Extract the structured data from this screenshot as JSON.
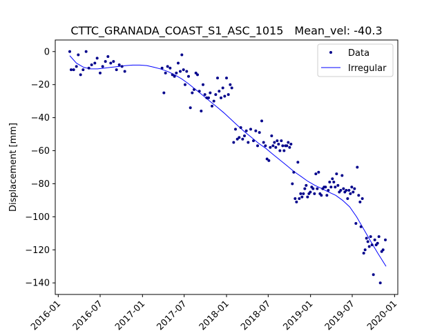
{
  "chart_data": {
    "type": "scatter",
    "title": "CTTC_GRANADA_COAST_S1_ASC_1015",
    "subtitle": "Mean_vel: -40.3",
    "xlabel": "",
    "ylabel": "Displacement [mm]",
    "x_type": "date",
    "xlim": [
      "2015-12-19",
      "2020-01-15"
    ],
    "ylim": [
      -147,
      7
    ],
    "x_ticks": [
      "2016-01",
      "2016-07",
      "2017-01",
      "2017-07",
      "2018-01",
      "2018-07",
      "2019-01",
      "2019-07",
      "2020-01"
    ],
    "y_ticks": [
      0,
      -20,
      -40,
      -60,
      -80,
      -100,
      -120,
      -140
    ],
    "grid": false,
    "legend_position": "top-right",
    "colors": {
      "points": "#00008b",
      "fit": "#0000ff"
    },
    "series": [
      {
        "name": "Data",
        "kind": "scatter",
        "points": [
          [
            "2016-02-20",
            0
          ],
          [
            "2016-02-26",
            -11
          ],
          [
            "2016-03-08",
            -11
          ],
          [
            "2016-03-20",
            -9
          ],
          [
            "2016-03-28",
            -2
          ],
          [
            "2016-04-07",
            -14
          ],
          [
            "2016-04-18",
            -11
          ],
          [
            "2016-05-01",
            0
          ],
          [
            "2016-05-13",
            -10
          ],
          [
            "2016-05-25",
            -8
          ],
          [
            "2016-06-08",
            -7
          ],
          [
            "2016-06-18",
            -4
          ],
          [
            "2016-07-01",
            -13
          ],
          [
            "2016-07-12",
            -9
          ],
          [
            "2016-07-24",
            -6
          ],
          [
            "2016-08-04",
            -3
          ],
          [
            "2016-08-16",
            -7
          ],
          [
            "2016-08-28",
            -6
          ],
          [
            "2016-09-10",
            -11
          ],
          [
            "2016-09-22",
            -8
          ],
          [
            "2016-10-04",
            -9
          ],
          [
            "2016-10-16",
            -12
          ],
          [
            "2017-03-27",
            -10
          ],
          [
            "2017-04-04",
            -25
          ],
          [
            "2017-04-11",
            -13
          ],
          [
            "2017-04-20",
            -9
          ],
          [
            "2017-05-01",
            -10
          ],
          [
            "2017-05-11",
            -14
          ],
          [
            "2017-05-20",
            -15
          ],
          [
            "2017-05-28",
            -13
          ],
          [
            "2017-06-05",
            -7
          ],
          [
            "2017-06-14",
            -12
          ],
          [
            "2017-06-21",
            -2
          ],
          [
            "2017-06-28",
            -11
          ],
          [
            "2017-07-05",
            -20
          ],
          [
            "2017-07-12",
            -12
          ],
          [
            "2017-07-20",
            -15
          ],
          [
            "2017-07-28",
            -34
          ],
          [
            "2017-08-05",
            -25
          ],
          [
            "2017-08-13",
            -23
          ],
          [
            "2017-08-21",
            -13
          ],
          [
            "2017-08-28",
            -14
          ],
          [
            "2017-09-05",
            -24
          ],
          [
            "2017-09-13",
            -36
          ],
          [
            "2017-09-21",
            -20
          ],
          [
            "2017-09-29",
            -26
          ],
          [
            "2017-10-07",
            -28
          ],
          [
            "2017-10-15",
            -28
          ],
          [
            "2017-10-22",
            -25
          ],
          [
            "2017-10-30",
            -33
          ],
          [
            "2017-11-07",
            -30
          ],
          [
            "2017-11-15",
            -26
          ],
          [
            "2017-11-23",
            -16
          ],
          [
            "2017-11-30",
            -24
          ],
          [
            "2017-12-08",
            -28
          ],
          [
            "2017-12-16",
            -22
          ],
          [
            "2017-12-24",
            -27
          ],
          [
            "2018-01-01",
            -16
          ],
          [
            "2018-01-09",
            -26
          ],
          [
            "2018-01-17",
            -20
          ],
          [
            "2018-01-24",
            -22
          ],
          [
            "2018-02-01",
            -55
          ],
          [
            "2018-02-09",
            -47
          ],
          [
            "2018-02-17",
            -53
          ],
          [
            "2018-02-25",
            -52
          ],
          [
            "2018-03-04",
            -46
          ],
          [
            "2018-03-12",
            -53
          ],
          [
            "2018-03-20",
            -51
          ],
          [
            "2018-03-28",
            -48
          ],
          [
            "2018-04-05",
            -55
          ],
          [
            "2018-04-16",
            -47
          ],
          [
            "2018-04-28",
            -54
          ],
          [
            "2018-05-08",
            -48
          ],
          [
            "2018-05-16",
            -57
          ],
          [
            "2018-05-24",
            -49
          ],
          [
            "2018-06-03",
            -42
          ],
          [
            "2018-06-11",
            -55
          ],
          [
            "2018-06-19",
            -57
          ],
          [
            "2018-06-26",
            -65
          ],
          [
            "2018-07-04",
            -66
          ],
          [
            "2018-07-10",
            -58
          ],
          [
            "2018-07-16",
            -51
          ],
          [
            "2018-07-22",
            -57
          ],
          [
            "2018-07-28",
            -55
          ],
          [
            "2018-08-03",
            -58
          ],
          [
            "2018-08-09",
            -54
          ],
          [
            "2018-08-15",
            -56
          ],
          [
            "2018-08-21",
            -60
          ],
          [
            "2018-08-27",
            -54
          ],
          [
            "2018-09-02",
            -57
          ],
          [
            "2018-09-08",
            -60
          ],
          [
            "2018-09-14",
            -57
          ],
          [
            "2018-09-20",
            -57
          ],
          [
            "2018-09-26",
            -55
          ],
          [
            "2018-10-02",
            -58
          ],
          [
            "2018-10-08",
            -56
          ],
          [
            "2018-10-14",
            -80
          ],
          [
            "2018-10-20",
            -73
          ],
          [
            "2018-10-26",
            -89
          ],
          [
            "2018-11-01",
            -91
          ],
          [
            "2018-11-07",
            -67
          ],
          [
            "2018-11-13",
            -89
          ],
          [
            "2018-11-19",
            -86
          ],
          [
            "2018-11-25",
            -88
          ],
          [
            "2018-12-01",
            -86
          ],
          [
            "2018-12-07",
            -83
          ],
          [
            "2018-12-13",
            -81
          ],
          [
            "2018-12-19",
            -88
          ],
          [
            "2018-12-25",
            -86
          ],
          [
            "2018-12-31",
            -85
          ],
          [
            "2019-01-06",
            -82
          ],
          [
            "2019-01-12",
            -83
          ],
          [
            "2019-01-18",
            -86
          ],
          [
            "2019-01-24",
            -74
          ],
          [
            "2019-01-30",
            -83
          ],
          [
            "2019-02-05",
            -73
          ],
          [
            "2019-02-11",
            -86
          ],
          [
            "2019-02-17",
            -87
          ],
          [
            "2019-02-23",
            -83
          ],
          [
            "2019-03-01",
            -82
          ],
          [
            "2019-03-07",
            -82
          ],
          [
            "2019-03-13",
            -87
          ],
          [
            "2019-03-19",
            -84
          ],
          [
            "2019-03-25",
            -79
          ],
          [
            "2019-03-31",
            -82
          ],
          [
            "2019-04-06",
            -77
          ],
          [
            "2019-04-12",
            -79
          ],
          [
            "2019-04-18",
            -82
          ],
          [
            "2019-04-24",
            -74
          ],
          [
            "2019-04-30",
            -81
          ],
          [
            "2019-05-06",
            -85
          ],
          [
            "2019-05-12",
            -84
          ],
          [
            "2019-05-18",
            -75
          ],
          [
            "2019-05-24",
            -83
          ],
          [
            "2019-05-30",
            -85
          ],
          [
            "2019-06-05",
            -84
          ],
          [
            "2019-06-11",
            -89
          ],
          [
            "2019-06-17",
            -84
          ],
          [
            "2019-06-23",
            -86
          ],
          [
            "2019-06-29",
            -82
          ],
          [
            "2019-07-05",
            -85
          ],
          [
            "2019-07-11",
            -83
          ],
          [
            "2019-07-17",
            -104
          ],
          [
            "2019-07-23",
            -70
          ],
          [
            "2019-07-29",
            -87
          ],
          [
            "2019-08-04",
            -91
          ],
          [
            "2019-08-08",
            -106
          ],
          [
            "2019-08-14",
            -89
          ],
          [
            "2019-08-20",
            -122
          ],
          [
            "2019-08-26",
            -120
          ],
          [
            "2019-09-01",
            -113
          ],
          [
            "2019-09-07",
            -115
          ],
          [
            "2019-09-13",
            -118
          ],
          [
            "2019-09-19",
            -112
          ],
          [
            "2019-09-25",
            -117
          ],
          [
            "2019-10-01",
            -135
          ],
          [
            "2019-10-07",
            -114
          ],
          [
            "2019-10-13",
            -117
          ],
          [
            "2019-10-19",
            -116
          ],
          [
            "2019-10-25",
            -112
          ],
          [
            "2019-10-31",
            -140
          ],
          [
            "2019-11-06",
            -121
          ],
          [
            "2019-11-12",
            -120
          ],
          [
            "2019-11-22",
            -114
          ]
        ]
      },
      {
        "name": "Irregular",
        "kind": "line",
        "points": [
          [
            "2016-02-20",
            -2.5
          ],
          [
            "2016-03-20",
            -7
          ],
          [
            "2016-04-20",
            -9.5
          ],
          [
            "2016-05-20",
            -10.5
          ],
          [
            "2016-06-20",
            -10.5
          ],
          [
            "2016-07-20",
            -10
          ],
          [
            "2016-08-20",
            -9.5
          ],
          [
            "2016-09-20",
            -9
          ],
          [
            "2016-10-20",
            -8.5
          ],
          [
            "2016-11-20",
            -8.2
          ],
          [
            "2016-12-20",
            -8.2
          ],
          [
            "2017-01-20",
            -8.5
          ],
          [
            "2017-02-20",
            -9.5
          ],
          [
            "2017-03-20",
            -10.5
          ],
          [
            "2017-04-20",
            -12
          ],
          [
            "2017-05-20",
            -14
          ],
          [
            "2017-06-20",
            -16.5
          ],
          [
            "2017-07-20",
            -19.5
          ],
          [
            "2017-08-20",
            -23
          ],
          [
            "2017-09-20",
            -26.5
          ],
          [
            "2017-10-20",
            -30
          ],
          [
            "2017-11-20",
            -33.5
          ],
          [
            "2017-12-20",
            -37
          ],
          [
            "2018-01-20",
            -41
          ],
          [
            "2018-02-20",
            -45
          ],
          [
            "2018-03-20",
            -48.5
          ],
          [
            "2018-04-20",
            -52
          ],
          [
            "2018-05-20",
            -55.5
          ],
          [
            "2018-06-20",
            -58.5
          ],
          [
            "2018-07-20",
            -62
          ],
          [
            "2018-08-20",
            -65.5
          ],
          [
            "2018-09-20",
            -69
          ],
          [
            "2018-10-20",
            -72.5
          ],
          [
            "2018-11-20",
            -75.5
          ],
          [
            "2018-12-20",
            -78.5
          ],
          [
            "2019-01-20",
            -81
          ],
          [
            "2019-02-20",
            -83
          ],
          [
            "2019-03-20",
            -85
          ],
          [
            "2019-04-20",
            -87
          ],
          [
            "2019-05-20",
            -90
          ],
          [
            "2019-06-20",
            -94
          ],
          [
            "2019-07-20",
            -100
          ],
          [
            "2019-08-20",
            -107.5
          ],
          [
            "2019-09-20",
            -115
          ],
          [
            "2019-10-20",
            -122
          ],
          [
            "2019-11-25",
            -130
          ]
        ]
      }
    ]
  }
}
